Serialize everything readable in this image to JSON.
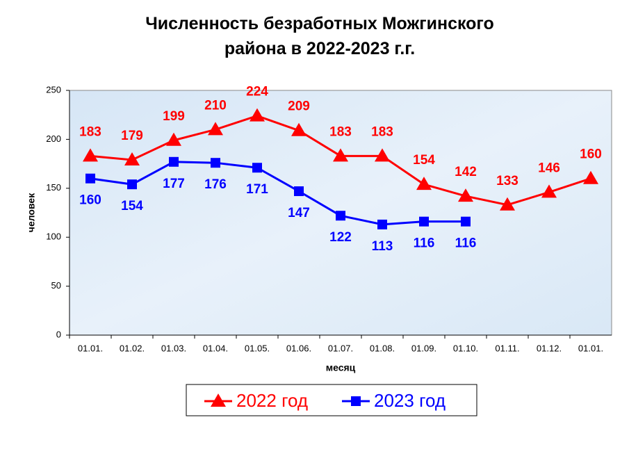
{
  "chart_data": {
    "type": "line",
    "title": "Численность безработных Можгинского района в 2022-2023 г.г.",
    "xlabel": "месяц",
    "ylabel": "человек",
    "categories": [
      "01.01.",
      "01.02.",
      "01.03.",
      "01.04.",
      "01.05.",
      "01.06.",
      "01.07.",
      "01.08.",
      "01.09.",
      "01.10.",
      "01.11.",
      "01.12.",
      "01.01."
    ],
    "series": [
      {
        "name": "2022 год",
        "color": "#ff0000",
        "marker": "triangle",
        "label_position": "above",
        "values": [
          183,
          179,
          199,
          210,
          224,
          209,
          183,
          183,
          154,
          142,
          133,
          146,
          160
        ]
      },
      {
        "name": "2023 год",
        "color": "#0000ff",
        "marker": "square",
        "label_position": "below",
        "values": [
          160,
          154,
          177,
          176,
          171,
          147,
          122,
          113,
          116,
          116,
          null,
          null,
          null
        ]
      }
    ],
    "ylim": [
      0,
      250
    ],
    "yticks": [
      0,
      50,
      100,
      150,
      200,
      250
    ],
    "legend": "bottom"
  }
}
